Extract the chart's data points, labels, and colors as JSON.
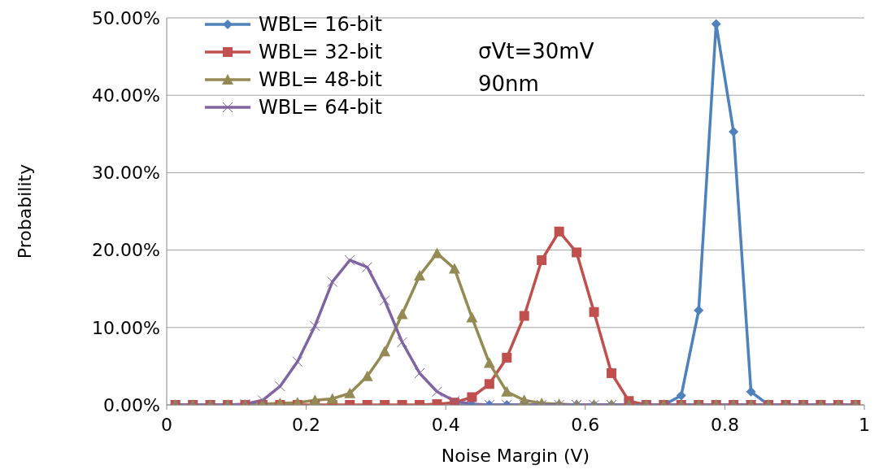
{
  "chart_data": {
    "type": "line",
    "xlabel": "Noise Margin (V)",
    "ylabel": "Probability",
    "x": [
      0.0125,
      0.0375,
      0.0625,
      0.0875,
      0.1125,
      0.1375,
      0.1625,
      0.1875,
      0.2125,
      0.2375,
      0.2625,
      0.2875,
      0.3125,
      0.3375,
      0.3625,
      0.3875,
      0.4125,
      0.4375,
      0.4625,
      0.4875,
      0.5125,
      0.5375,
      0.5625,
      0.5875,
      0.6125,
      0.6375,
      0.6625,
      0.6875,
      0.7125,
      0.7375,
      0.7625,
      0.7875,
      0.8125,
      0.8375,
      0.8625,
      0.8875,
      0.9125,
      0.9375,
      0.9625,
      0.9875
    ],
    "series": [
      {
        "name": "WBL= 16-bit",
        "color": "#4f81bd",
        "marker": "diamond",
        "values": [
          null,
          null,
          null,
          null,
          null,
          null,
          null,
          null,
          null,
          null,
          null,
          null,
          null,
          null,
          null,
          null,
          0,
          0,
          0,
          0,
          0,
          0,
          0,
          0,
          0,
          0,
          0,
          null,
          0,
          1.2,
          12.2,
          49.2,
          35.3,
          1.7,
          0,
          null,
          null,
          null,
          null,
          null
        ]
      },
      {
        "name": "WBL= 32-bit",
        "color": "#c0504d",
        "marker": "square",
        "values": [
          0,
          0,
          0,
          0,
          0,
          0,
          0,
          0,
          0,
          0,
          0,
          0,
          0,
          0,
          0,
          0.1,
          0.3,
          1.0,
          2.7,
          6.1,
          11.5,
          18.7,
          22.4,
          19.7,
          12.0,
          4.1,
          0.5,
          0,
          0,
          0,
          0,
          0,
          0,
          0,
          0,
          0,
          0,
          0,
          0,
          0
        ]
      },
      {
        "name": "WBL= 48-bit",
        "color": "#948a54",
        "marker": "triangle",
        "values": [
          0,
          0,
          0,
          0,
          0,
          0.1,
          0.2,
          0.3,
          0.6,
          0.8,
          1.5,
          3.7,
          6.9,
          11.7,
          16.7,
          19.6,
          17.6,
          11.3,
          5.4,
          1.7,
          0.6,
          0.2,
          0.1,
          0,
          0,
          0,
          0,
          0,
          0,
          0,
          0,
          0,
          0,
          0,
          0,
          0,
          0,
          0,
          0,
          0
        ]
      },
      {
        "name": "WBL= 64-bit",
        "color": "#8064a2",
        "marker": "cross",
        "values": [
          0,
          0,
          0,
          0,
          0.1,
          0.6,
          2.4,
          5.6,
          10.2,
          15.9,
          18.7,
          17.8,
          13.5,
          8.1,
          4.1,
          1.7,
          0.5,
          0.1,
          0,
          0,
          0,
          0,
          0,
          0,
          0,
          0,
          0,
          0,
          0,
          0,
          0,
          0,
          0,
          0,
          0,
          0,
          0,
          0,
          0,
          0
        ]
      }
    ],
    "xlim": [
      0,
      1
    ],
    "xticks": [
      0,
      0.2,
      0.4,
      0.6,
      0.8,
      1
    ],
    "ylim": [
      0,
      50
    ],
    "yticks": [
      {
        "value": 0,
        "label": "0.00%"
      },
      {
        "value": 10,
        "label": "10.00%"
      },
      {
        "value": 20,
        "label": "20.00%"
      },
      {
        "value": 30,
        "label": "30.00%"
      },
      {
        "value": 40,
        "label": "40.00%"
      },
      {
        "value": 50,
        "label": "50.00%"
      }
    ],
    "grid": "y",
    "legend": "top left",
    "annotations": [
      "σVt=30mV",
      "90nm"
    ]
  }
}
